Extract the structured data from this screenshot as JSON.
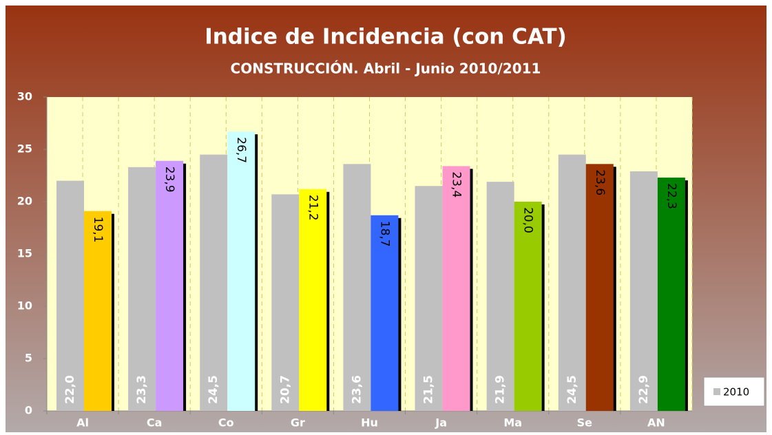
{
  "chart_data": {
    "type": "bar",
    "title": "Indice de Incidencia (con CAT)",
    "subtitle": "CONSTRUCCIÓN. Abril - Junio 2010/2011",
    "categories": [
      "Al",
      "Ca",
      "Co",
      "Gr",
      "Hu",
      "Ja",
      "Ma",
      "Se",
      "AN"
    ],
    "series": [
      {
        "name": "2010",
        "color": "#c0c0c0",
        "values": [
          22.0,
          23.3,
          24.5,
          20.7,
          23.6,
          21.5,
          21.9,
          24.5,
          22.9
        ],
        "value_labels": [
          "22,0",
          "23,3",
          "24,5",
          "20,7",
          "23,6",
          "21,5",
          "21,9",
          "24,5",
          "22,9"
        ]
      },
      {
        "colors": [
          "#ffcc00",
          "#cc99ff",
          "#ccffff",
          "#ffff00",
          "#3366ff",
          "#ff99cc",
          "#99cc00",
          "#993300",
          "#008000"
        ],
        "values": [
          19.1,
          23.9,
          26.7,
          21.2,
          18.7,
          23.4,
          20.0,
          23.6,
          22.3
        ],
        "value_labels": [
          "19,1",
          "23,9",
          "26,7",
          "21,2",
          "18,7",
          "23,4",
          "20,0",
          "23,6",
          "22,3"
        ]
      }
    ],
    "ylim": [
      0,
      30
    ],
    "yticks": [
      0,
      5,
      10,
      15,
      20,
      25,
      30
    ],
    "legend": "right"
  }
}
